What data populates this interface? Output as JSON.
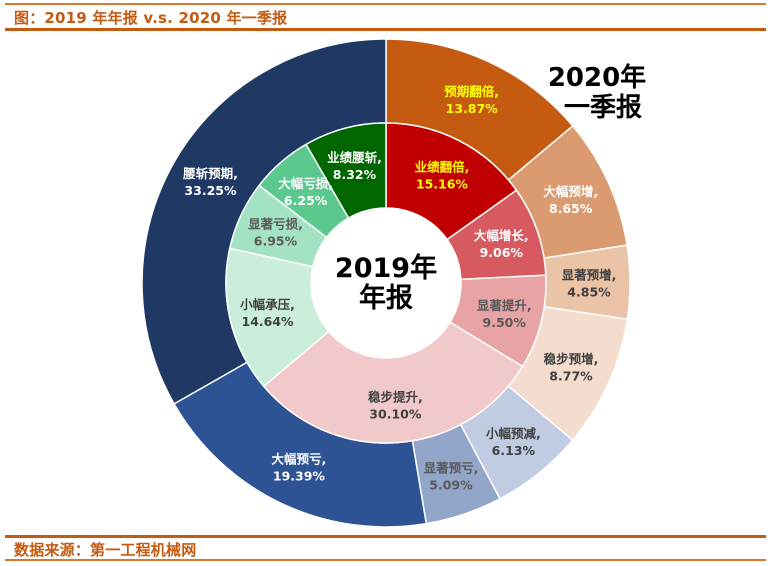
{
  "header": {
    "title": "图：2019 年年报  v.s. 2020 年一季报"
  },
  "footer": {
    "source": "数据来源：第一工程机械网"
  },
  "colors": {
    "accent": "#C55A11"
  },
  "chart_data": [
    {
      "type": "pie",
      "variant": "donut-inner-ring",
      "title": "2019年年报",
      "title_lines": [
        "2019年",
        "年报"
      ],
      "start": "12 o'clock, clockwise",
      "categories": [
        "业绩翻倍",
        "大幅增长",
        "显著提升",
        "稳步提升",
        "小幅承压",
        "显著亏损",
        "大幅亏损",
        "业绩腰斩"
      ],
      "values": [
        15.16,
        9.06,
        9.5,
        30.1,
        14.64,
        6.95,
        6.25,
        8.32
      ],
      "value_labels": [
        "15.16%",
        "9.06%",
        "9.50%",
        "30.10%",
        "14.64%",
        "6.95%",
        "6.25%",
        "8.32%"
      ],
      "colors": [
        "#C00000",
        "#D65A5F",
        "#E8A3A5",
        "#F2C9CA",
        "#CBEEDC",
        "#A3E2C2",
        "#5BC98E",
        "#006600"
      ],
      "label_colors": [
        "#FFFF00",
        "#FFFFFF",
        "#595959",
        "#404040",
        "#404040",
        "#595959",
        "#FFFFFF",
        "#FFFFFF"
      ]
    },
    {
      "type": "pie",
      "variant": "donut-outer-ring",
      "title": "2020年一季报",
      "title_lines": [
        "2020年",
        "一季报"
      ],
      "start": "12 o'clock, clockwise",
      "categories": [
        "预期翻倍",
        "大幅预增",
        "显著预增",
        "稳步预增",
        "小幅预减",
        "显著预亏",
        "大幅预亏",
        "腰斩预期"
      ],
      "values": [
        13.87,
        8.65,
        4.85,
        8.77,
        6.13,
        5.09,
        19.39,
        33.25
      ],
      "value_labels": [
        "13.87%",
        "8.65%",
        "4.85%",
        "8.77%",
        "6.13%",
        "5.09%",
        "19.39%",
        "33.25%"
      ],
      "colors": [
        "#C55A11",
        "#DB9B70",
        "#EBC3A7",
        "#F4DDCE",
        "#BFCCE2",
        "#92A6CA",
        "#2E5395",
        "#1F3864"
      ],
      "label_colors": [
        "#FFFF00",
        "#FFFFFF",
        "#404040",
        "#404040",
        "#404040",
        "#595959",
        "#FFFFFF",
        "#FFFFFF"
      ]
    }
  ]
}
